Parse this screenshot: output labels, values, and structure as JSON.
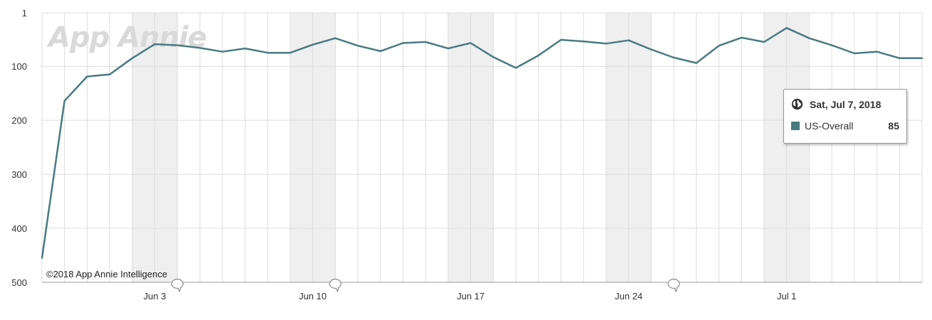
{
  "chart_data": {
    "type": "line",
    "title": "",
    "watermark": "App Annie",
    "copyright": "©2018 App Annie Intelligence",
    "y_axis": {
      "inverted": true,
      "range": [
        1,
        500
      ],
      "ticks": [
        "1",
        "100",
        "200",
        "300",
        "400",
        "500"
      ],
      "tick_values": [
        1,
        100,
        200,
        300,
        400,
        500
      ]
    },
    "x_axis": {
      "range": [
        "May 29, 2018",
        "Jul 7, 2018"
      ],
      "ticks": [
        "Jun 3",
        "Jun 10",
        "Jun 17",
        "Jun 24",
        "Jul 1"
      ],
      "tick_dates": [
        "Jun 3, 2018",
        "Jun 10, 2018",
        "Jun 17, 2018",
        "Jun 24, 2018",
        "Jul 1, 2018"
      ]
    },
    "weekend_shading": true,
    "grid": true,
    "event_markers": [
      "Jun 4, 2018",
      "Jun 11, 2018",
      "Jun 26, 2018"
    ],
    "series": [
      {
        "name": "US-Overall",
        "color": "#4a7a80",
        "x": [
          "May 29, 2018",
          "May 30, 2018",
          "May 31, 2018",
          "Jun 1, 2018",
          "Jun 2, 2018",
          "Jun 3, 2018",
          "Jun 4, 2018",
          "Jun 5, 2018",
          "Jun 6, 2018",
          "Jun 7, 2018",
          "Jun 8, 2018",
          "Jun 9, 2018",
          "Jun 10, 2018",
          "Jun 11, 2018",
          "Jun 12, 2018",
          "Jun 13, 2018",
          "Jun 14, 2018",
          "Jun 15, 2018",
          "Jun 16, 2018",
          "Jun 17, 2018",
          "Jun 18, 2018",
          "Jun 19, 2018",
          "Jun 20, 2018",
          "Jun 21, 2018",
          "Jun 22, 2018",
          "Jun 23, 2018",
          "Jun 24, 2018",
          "Jun 25, 2018",
          "Jun 26, 2018",
          "Jun 27, 2018",
          "Jun 28, 2018",
          "Jun 29, 2018",
          "Jun 30, 2018",
          "Jul 1, 2018",
          "Jul 2, 2018",
          "Jul 3, 2018",
          "Jul 4, 2018",
          "Jul 5, 2018",
          "Jul 6, 2018",
          "Jul 7, 2018"
        ],
        "values": [
          455,
          164,
          119,
          115,
          85,
          59,
          61,
          66,
          73,
          67,
          75,
          75,
          60,
          48,
          62,
          72,
          57,
          55,
          67,
          57,
          83,
          103,
          80,
          51,
          54,
          58,
          52,
          69,
          84,
          94,
          62,
          47,
          55,
          29,
          48,
          61,
          76,
          73,
          85,
          85
        ]
      }
    ]
  },
  "tooltip": {
    "date": "Sat, Jul 7, 2018",
    "series_name": "US-Overall",
    "value": "85",
    "swatch_color": "#4a7a80",
    "icon": "globe-icon"
  }
}
